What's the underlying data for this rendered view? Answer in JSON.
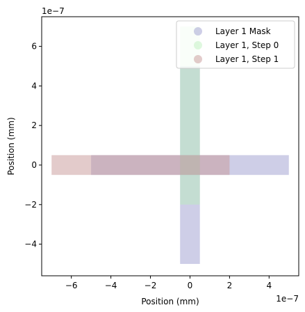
{
  "chart_data": {
    "type": "bar",
    "xlabel": "Position (mm)",
    "ylabel": "Position (mm)",
    "x_exponent_label": "1e−7",
    "y_exponent_label": "1e−7",
    "xlim": [
      -7.5,
      5.5
    ],
    "ylim": [
      -5.6,
      7.5
    ],
    "xticks": [
      -6,
      -4,
      -2,
      0,
      2,
      4
    ],
    "yticks": [
      -4,
      -2,
      0,
      2,
      4,
      6
    ],
    "xtick_labels": [
      "−6",
      "−4",
      "−2",
      "0",
      "2",
      "4"
    ],
    "ytick_labels": [
      "−4",
      "−2",
      "0",
      "2",
      "4",
      "6"
    ],
    "grid": false,
    "legend_location": "upper right",
    "series": [
      {
        "name": "Layer 1 Mask",
        "color": "#9e9ecf",
        "alpha": 0.5,
        "rects": [
          {
            "x0": -5,
            "x1": 5,
            "y0": -0.5,
            "y1": 0.5
          },
          {
            "x0": -0.5,
            "x1": 0.5,
            "y0": -5,
            "y1": 5
          }
        ]
      },
      {
        "name": "Layer 1, Step 0",
        "color": "#b8f0b8",
        "alpha": 0.45,
        "rects": [
          {
            "x0": -0.5,
            "x1": 0.5,
            "y0": -2,
            "y1": 7
          }
        ]
      },
      {
        "name": "Layer 1, Step 1",
        "color": "#c89898",
        "alpha": 0.5,
        "rects": [
          {
            "x0": -7,
            "x1": 2,
            "y0": -0.5,
            "y1": 0.5
          }
        ]
      }
    ]
  }
}
